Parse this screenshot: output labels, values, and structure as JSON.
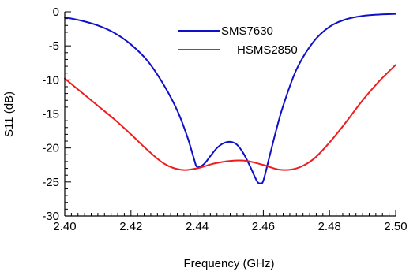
{
  "chart_data": {
    "type": "line",
    "xlabel": "Frequency (GHz)",
    "ylabel": "S11 (dB)",
    "xlim": [
      2.4,
      2.5
    ],
    "ylim": [
      -30,
      0
    ],
    "xticks": [
      "2.40",
      "2.42",
      "2.44",
      "2.46",
      "2.48",
      "2.50"
    ],
    "yticks": [
      "0",
      "-5",
      "-10",
      "-15",
      "-20",
      "-25",
      "-30"
    ],
    "grid": false,
    "legend_position": "top-center",
    "series": [
      {
        "name": "SMS7630",
        "color": "#1010c8",
        "points": [
          [
            2.4,
            -0.8
          ],
          [
            2.405,
            -1.3
          ],
          [
            2.41,
            -2.0
          ],
          [
            2.415,
            -3.1
          ],
          [
            2.42,
            -4.8
          ],
          [
            2.425,
            -7.2
          ],
          [
            2.43,
            -10.8
          ],
          [
            2.434,
            -14.5
          ],
          [
            2.437,
            -18.3
          ],
          [
            2.439,
            -21.5
          ],
          [
            2.44,
            -22.8
          ],
          [
            2.442,
            -22.4
          ],
          [
            2.444,
            -21.2
          ],
          [
            2.446,
            -20.0
          ],
          [
            2.448,
            -19.3
          ],
          [
            2.45,
            -19.1
          ],
          [
            2.452,
            -19.5
          ],
          [
            2.454,
            -20.8
          ],
          [
            2.456,
            -22.7
          ],
          [
            2.458,
            -24.8
          ],
          [
            2.459,
            -25.2
          ],
          [
            2.46,
            -24.8
          ],
          [
            2.462,
            -21.0
          ],
          [
            2.464,
            -17.2
          ],
          [
            2.466,
            -13.8
          ],
          [
            2.47,
            -8.5
          ],
          [
            2.475,
            -4.5
          ],
          [
            2.48,
            -2.2
          ],
          [
            2.485,
            -1.1
          ],
          [
            2.49,
            -0.6
          ],
          [
            2.495,
            -0.4
          ],
          [
            2.5,
            -0.3
          ]
        ]
      },
      {
        "name": "HSMS2850",
        "color": "#ee1c1c",
        "points": [
          [
            2.4,
            -9.8
          ],
          [
            2.405,
            -11.8
          ],
          [
            2.41,
            -13.8
          ],
          [
            2.415,
            -15.8
          ],
          [
            2.42,
            -18.0
          ],
          [
            2.425,
            -20.3
          ],
          [
            2.43,
            -22.3
          ],
          [
            2.435,
            -23.2
          ],
          [
            2.44,
            -23.0
          ],
          [
            2.445,
            -22.3
          ],
          [
            2.45,
            -21.9
          ],
          [
            2.455,
            -21.9
          ],
          [
            2.46,
            -22.5
          ],
          [
            2.465,
            -23.2
          ],
          [
            2.47,
            -23.0
          ],
          [
            2.475,
            -21.7
          ],
          [
            2.48,
            -19.2
          ],
          [
            2.485,
            -16.2
          ],
          [
            2.49,
            -13.0
          ],
          [
            2.495,
            -10.2
          ],
          [
            2.5,
            -7.8
          ]
        ]
      }
    ]
  }
}
